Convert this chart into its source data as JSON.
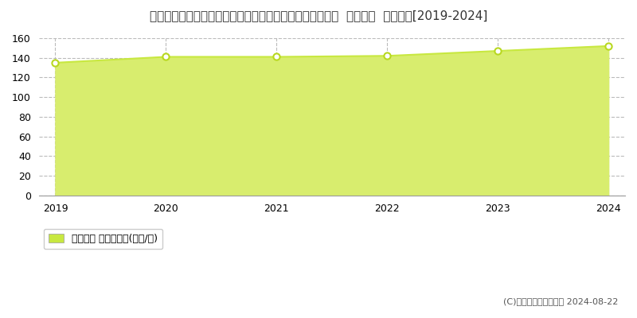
{
  "title": "埼玉県さいたま市中央区大字下落合字大原１０５０番２外  地価公示  地価推移[2019-2024]",
  "years": [
    2019,
    2020,
    2021,
    2022,
    2023,
    2024
  ],
  "values": [
    135,
    141,
    141,
    142,
    147,
    152
  ],
  "line_color": "#c8e840",
  "fill_color": "#d8ed6e",
  "marker_color": "#ffffff",
  "marker_edge_color": "#b8d820",
  "grid_color": "#bbbbbb",
  "background_color": "#ffffff",
  "plot_bg_color": "#ffffff",
  "ylim": [
    0,
    160
  ],
  "yticks": [
    0,
    20,
    40,
    60,
    80,
    100,
    120,
    140,
    160
  ],
  "legend_label": "地価公示 平均坪単価(万円/坪)",
  "legend_marker_color": "#c8e840",
  "copyright_text": "(C)土地価格ドットコム 2024-08-22",
  "title_fontsize": 11,
  "tick_fontsize": 9,
  "legend_fontsize": 9
}
